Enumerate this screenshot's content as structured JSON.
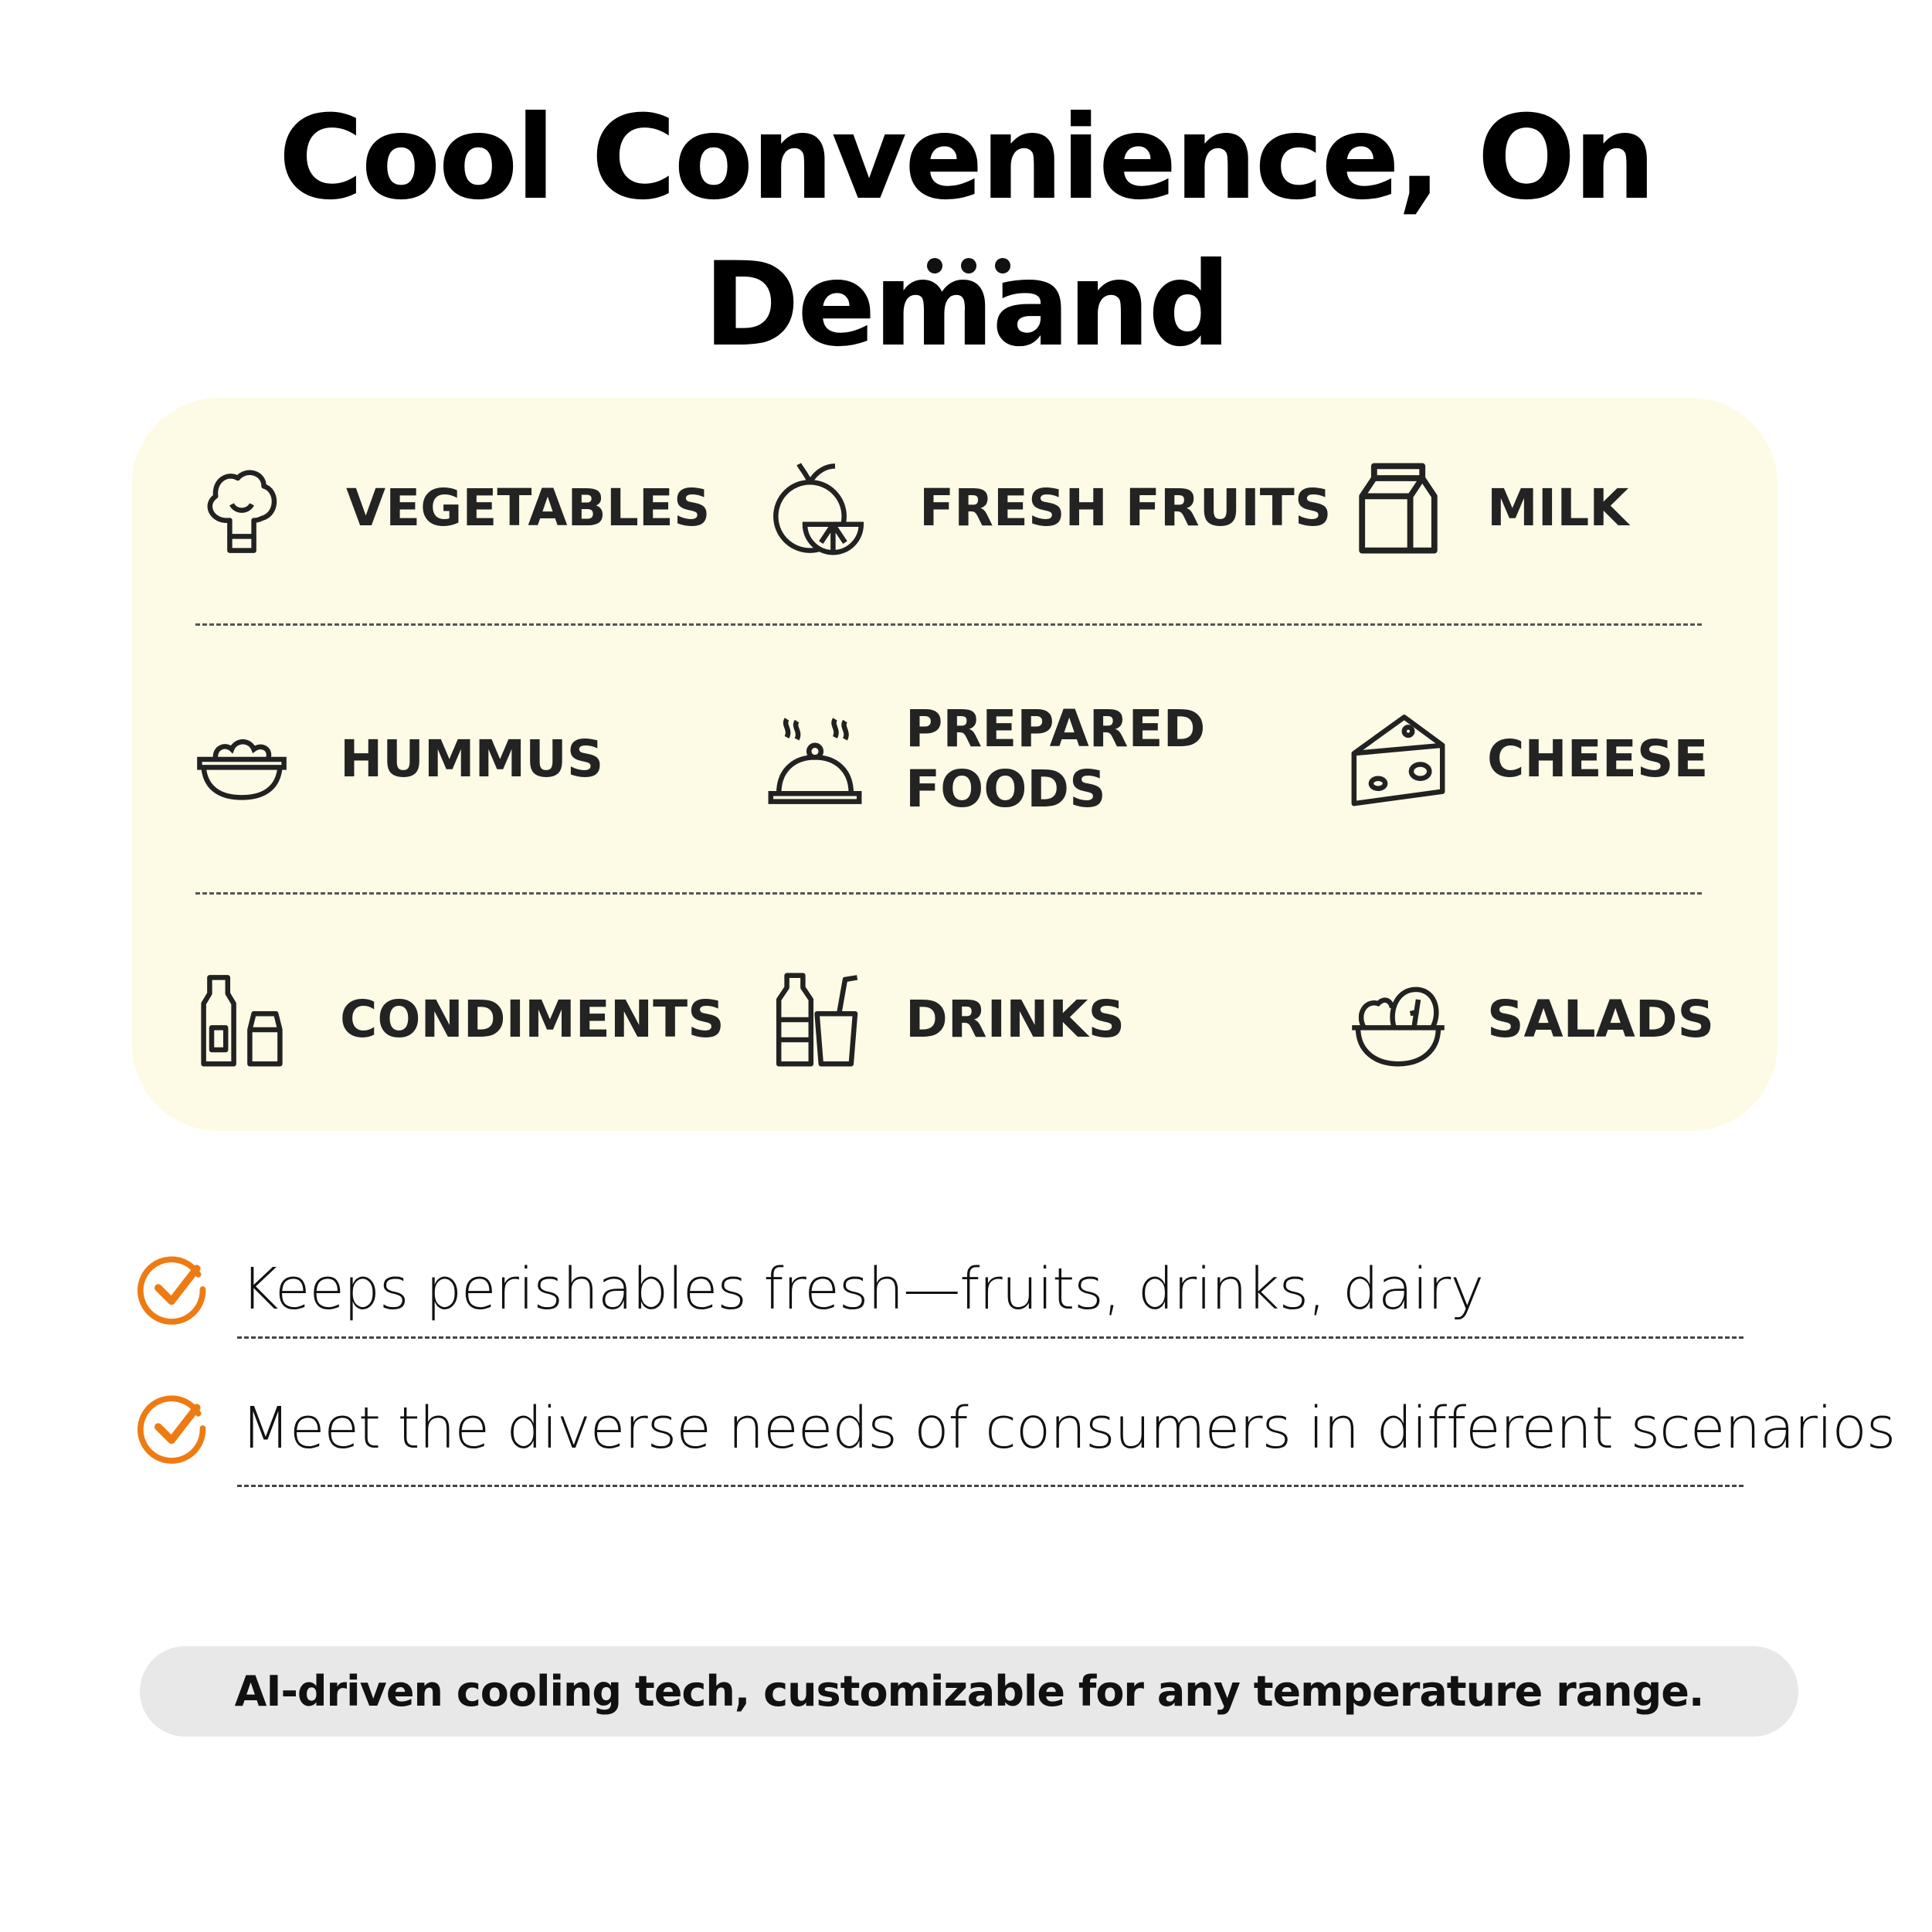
{
  "header": {
    "title": "Cool Convenience, On Demand"
  },
  "categories": [
    {
      "label": "VEGETABLES",
      "icon": "broccoli-icon"
    },
    {
      "label": "FRESH FRUITS",
      "icon": "fruit-icon"
    },
    {
      "label": "MILK",
      "icon": "milk-carton-icon"
    },
    {
      "label": "HUMMUS",
      "icon": "bowl-icon"
    },
    {
      "label": "PREPARED FOODS",
      "icon": "cloche-icon"
    },
    {
      "label": "CHEESE",
      "icon": "cheese-icon"
    },
    {
      "label": "CONDIMENTS",
      "icon": "condiment-bottles-icon"
    },
    {
      "label": "DRINKS",
      "icon": "drinks-icon"
    },
    {
      "label": "SALADS",
      "icon": "salad-bowl-icon"
    }
  ],
  "benefits": [
    {
      "text": "Keeps perishables fresh—fruits, drinks, dairy",
      "icon": "check-circle-icon"
    },
    {
      "text": "Meet the diverse needs of consumers in different scenarios",
      "icon": "check-circle-icon"
    }
  ],
  "footer": {
    "note": "AI-driven cooling tech, customizable for any temperature range."
  },
  "colors": {
    "panel": "#fdfbe6",
    "accent": "#ee7b12",
    "pill": "#e8e8e8"
  }
}
